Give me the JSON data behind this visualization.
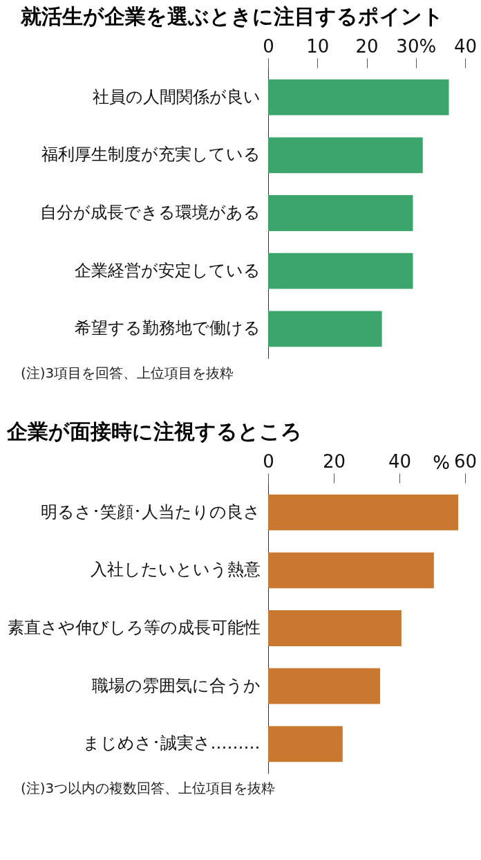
{
  "chart_data": [
    {
      "type": "bar",
      "orientation": "horizontal",
      "title": "就活生が企業を選ぶときに注目するポイント",
      "categories": [
        "社員の人間関係が良い",
        "福利厚生制度が充実している",
        "自分が成長できる環境がある",
        "企業経営が安定している",
        "希望する勤務地で働ける"
      ],
      "values": [
        36.7,
        31.4,
        29.4,
        29.4,
        23.1
      ],
      "color": "#3ba56c",
      "xlim": [
        0,
        40
      ],
      "xticks": [
        0,
        10,
        20,
        {
          "value": 30,
          "label": "30%"
        },
        40
      ],
      "grid": false,
      "annotations": [
        "(注)3項目を回答、上位項目を抜粋"
      ]
    },
    {
      "type": "bar",
      "orientation": "horizontal",
      "title": "企業が面接時に注視するところ",
      "xlabel": "%",
      "categories": [
        "明るさ･笑顔･人当たりの良さ",
        "入社したいという熱意",
        "素直さや伸びしろ等の成長可能性",
        "職場の雰囲気に合うか",
        "まじめさ･誠実さ………"
      ],
      "values": [
        57.9,
        50.5,
        40.6,
        34.1,
        22.7
      ],
      "color": "#c8782f",
      "xlim": [
        0,
        60
      ],
      "xticks": [
        0,
        20,
        40,
        60
      ],
      "grid": false,
      "annotations": [
        "(注)3つ以内の複数回答、上位項目を抜粋"
      ]
    }
  ]
}
